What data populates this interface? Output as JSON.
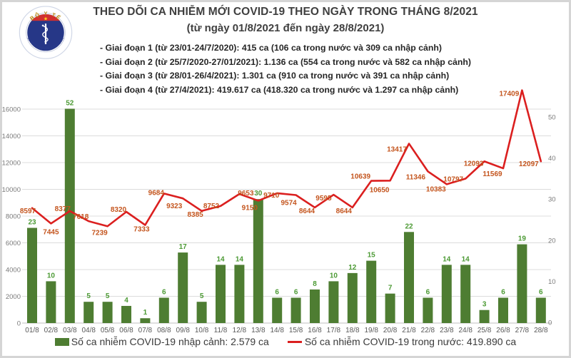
{
  "header": {
    "title": "THEO DÕI CA NHIỄM MỚI COVID-19 THEO NGÀY TRONG THÁNG 8/2021",
    "subtitle": "(từ ngày 01/8/2021 đến ngày 28/8/2021)",
    "bullets": [
      "- Giai đoạn 1 (từ 23/01-24/7/2020): 415 ca (106 ca trong nước và 309 ca nhập cảnh)",
      "- Giai đoạn 2 (từ 25/7/2020-27/01/2021): 1.136 ca (554 ca trong nước và 582 ca nhập cảnh)",
      "- Giai đoạn 3 (từ 28/01-26/4/2021): 1.301 ca (910 ca trong nước và 391 ca nhập cảnh)",
      "- Giai đoạn 4 (từ 27/4/2021): 419.617 ca (418.320 ca trong nước và 1.297 ca nhập cảnh)"
    ]
  },
  "logo": {
    "arc_top": "BỘ Y TẾ",
    "arc_bottom": "MINISTRY OF HEALTH"
  },
  "legend": {
    "imported": "Số ca nhiễm COVID-19 nhập cảnh: 2.579 ca",
    "domestic": "Số ca nhiễm COVID-19 trong nước: 419.890 ca"
  },
  "chart_data": {
    "type": "combo-bar-line",
    "categories": [
      "01/8",
      "02/8",
      "03/8",
      "04/8",
      "05/8",
      "06/8",
      "07/8",
      "08/8",
      "09/8",
      "10/8",
      "11/8",
      "12/8",
      "13/8",
      "14/8",
      "15/8",
      "16/8",
      "17/8",
      "18/8",
      "19/8",
      "20/8",
      "21/8",
      "22/8",
      "23/8",
      "24/8",
      "25/8",
      "26/8",
      "27/8",
      "28/8"
    ],
    "series": [
      {
        "name": "Số ca nhiễm COVID-19 nhập cảnh",
        "chart_type": "bar",
        "axis": "right",
        "color": "#4E7D32",
        "label_color": "#4C9A34",
        "values": [
          23,
          10,
          52,
          5,
          5,
          4,
          1,
          6,
          17,
          5,
          14,
          14,
          30,
          6,
          6,
          8,
          10,
          12,
          15,
          7,
          22,
          6,
          14,
          14,
          3,
          6,
          19,
          6
        ]
      },
      {
        "name": "Số ca nhiễm COVID-19 trong nước",
        "chart_type": "line",
        "axis": "left",
        "color": "#DB1F1F",
        "label_color": "#C4551E",
        "values": [
          8597,
          7445,
          8377,
          7618,
          7239,
          8320,
          7333,
          9684,
          9323,
          8385,
          8752,
          9653,
          9150,
          9710,
          9574,
          8644,
          9595,
          8644,
          10639,
          10650,
          13417,
          11346,
          10383,
          10797,
          12093,
          11569,
          17409,
          12097
        ]
      }
    ],
    "left_axis": {
      "min": 0,
      "max": 16000,
      "step": 2000,
      "tick_labels": [
        "0",
        "2000",
        "4000",
        "6000",
        "8000",
        "10000",
        "12000",
        "14000",
        "16000"
      ]
    },
    "right_axis": {
      "min": 0,
      "max": 50,
      "step": 10,
      "tick_labels": [
        "0",
        "10",
        "20",
        "30",
        "40",
        "50"
      ]
    },
    "grid": "horizontal",
    "legend_position": "bottom"
  }
}
